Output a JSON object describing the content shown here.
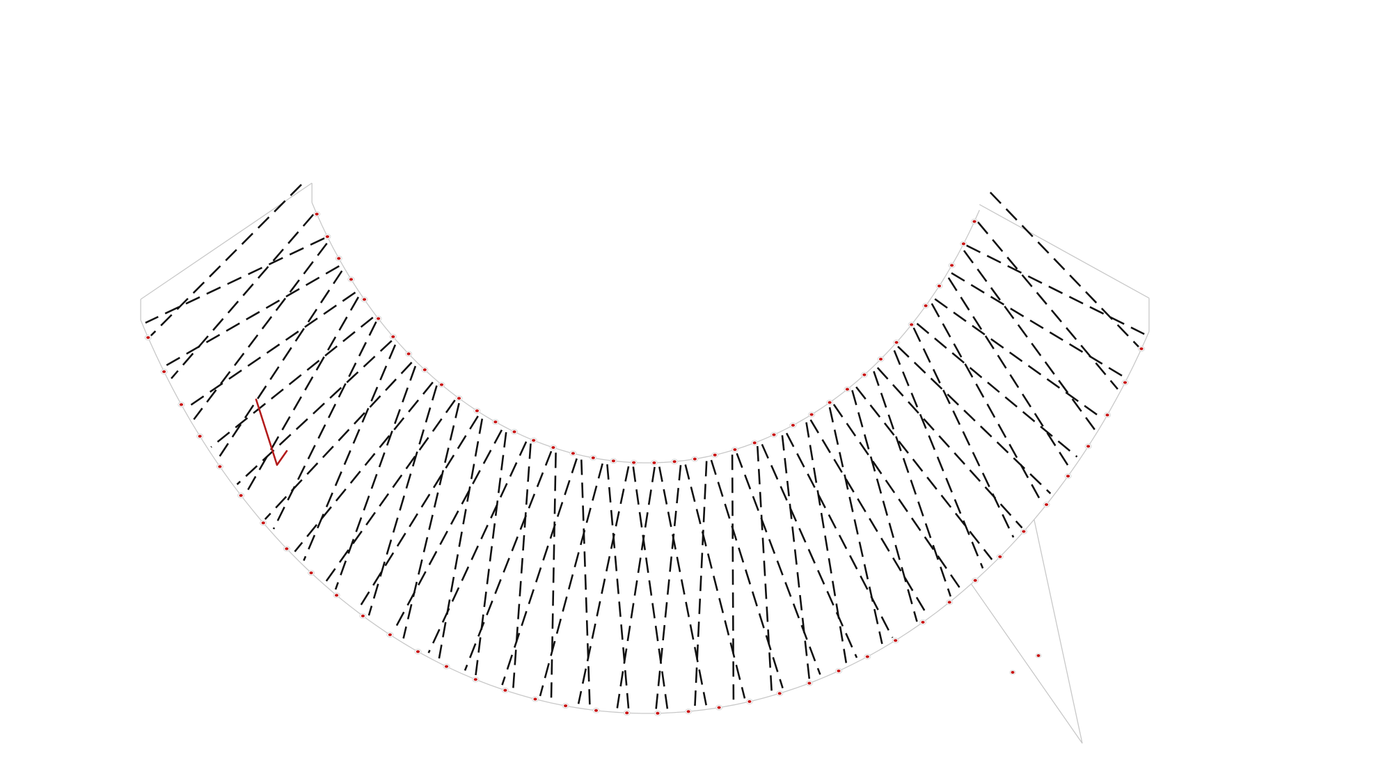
{
  "diagram": {
    "kind": "curved-band-pattern",
    "colors": {
      "background": "#ffffff",
      "outline": "#c8c8c8",
      "dash_lines": "#111111",
      "markers": "#c81414",
      "pointer_mark": "#b31b1b"
    },
    "icons": [
      "red-pointer-icon"
    ],
    "dash_line_count": 64,
    "marker_count_per_edge": 40
  }
}
